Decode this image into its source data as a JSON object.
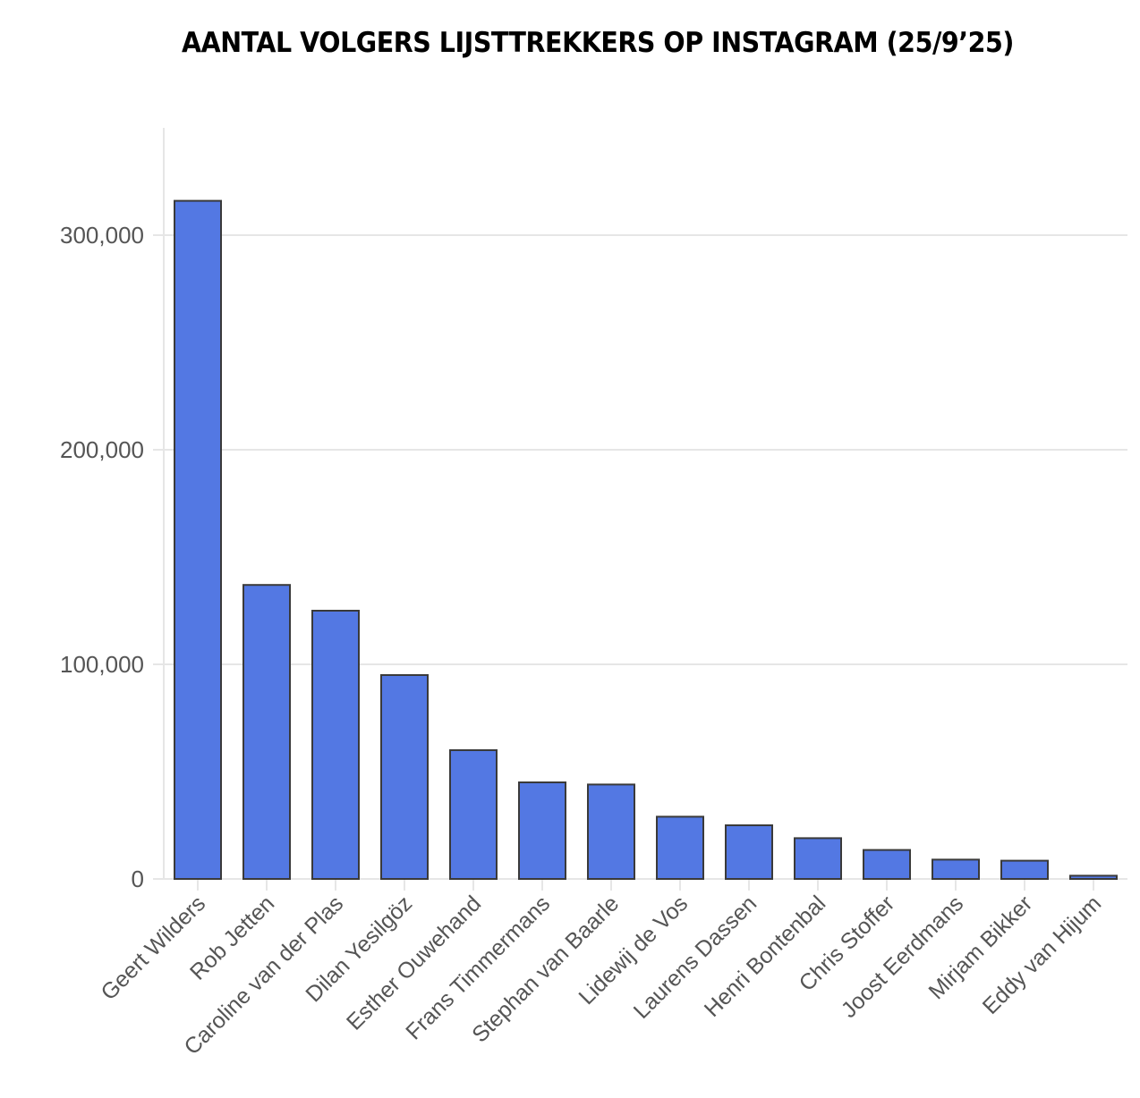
{
  "chart_data": {
    "type": "bar",
    "title": "AANTAL VOLGERS LIJSTTREKKERS OP INSTAGRAM (25/9’25)",
    "xlabel": "",
    "ylabel": "",
    "categories": [
      "Geert Wilders",
      "Rob Jetten",
      "Caroline van der Plas",
      "Dilan Yesilgöz",
      "Esther Ouwehand",
      "Frans Timmermans",
      "Stephan van Baarle",
      "Lidewij de Vos",
      "Laurens Dassen",
      "Henri Bontenbal",
      "Chris Stoffer",
      "Joost Eerdmans",
      "Mirjam Bikker",
      "Eddy van Hijum"
    ],
    "values": [
      316000,
      137000,
      125000,
      95000,
      60000,
      45000,
      44000,
      29000,
      25000,
      19000,
      13500,
      9000,
      8500,
      1500
    ],
    "ylim": [
      0,
      350000
    ],
    "yticks": [
      0,
      100000,
      200000,
      300000
    ],
    "ytick_labels": [
      "0",
      "100,000",
      "200,000",
      "300,000"
    ],
    "grid": true,
    "bar_color": "#5378e3",
    "bar_edge_color": "#3a3a3a"
  }
}
